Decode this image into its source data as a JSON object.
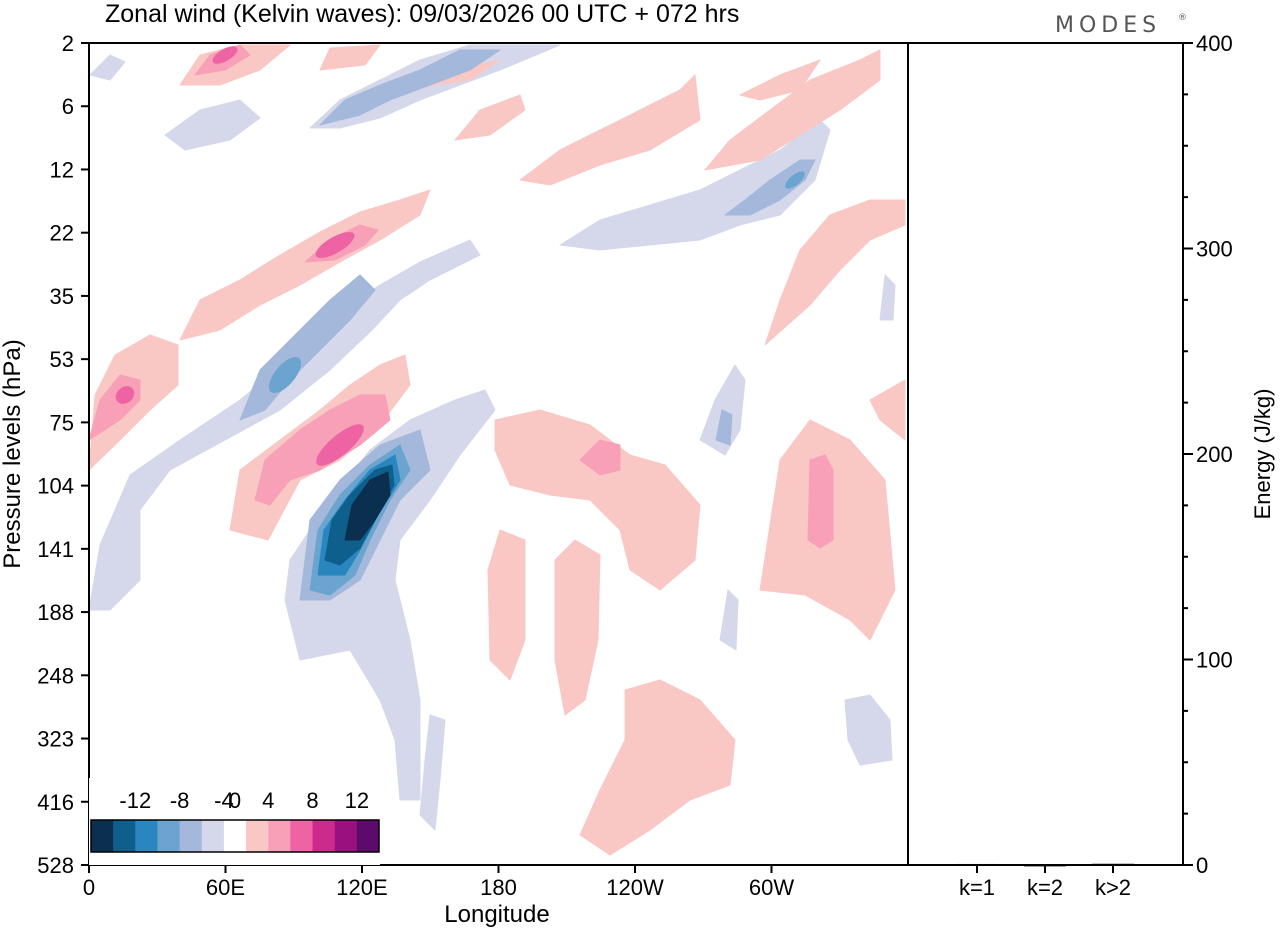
{
  "title": "Zonal wind (Kelvin waves):  09/03/2026  00 UTC  + 072 hrs",
  "logo": "MODES",
  "logo_mark": "®",
  "chart_data": [
    {
      "type": "heatmap",
      "xlabel": "Longitude",
      "ylabel": "Pressure levels (hPa)",
      "x_ticks": [
        "0",
        "60E",
        "120E",
        "180",
        "120W",
        "60W"
      ],
      "x_tick_degrees": [
        0,
        60,
        120,
        180,
        240,
        300
      ],
      "xlim": [
        0,
        360
      ],
      "y_ticks": [
        "2",
        "6",
        "12",
        "22",
        "35",
        "53",
        "75",
        "104",
        "141",
        "188",
        "248",
        "323",
        "416",
        "528"
      ],
      "colorbar": {
        "labels": [
          "-12",
          "-8",
          "-4",
          "0",
          "4",
          "8",
          "12"
        ],
        "levels": [
          -14,
          -12,
          -10,
          -8,
          -6,
          -4,
          -2,
          2,
          4,
          6,
          8,
          10,
          12,
          14
        ],
        "colors": [
          "#0a2f4f",
          "#0f5f8c",
          "#2a86bf",
          "#6aa4cf",
          "#a3b8da",
          "#d5d8ea",
          "#ffffff",
          "#f9c8c5",
          "#f8a0b7",
          "#ee63a3",
          "#cc2b8d",
          "#99107e",
          "#5e0a6c"
        ]
      },
      "features": [
        {
          "lon": 120,
          "level": "116",
          "value": -14
        },
        {
          "lon": 114,
          "level": "125",
          "value": -12
        },
        {
          "lon": 87,
          "level": "60",
          "value": -10
        },
        {
          "lon": 110,
          "level": "84",
          "value": 10
        },
        {
          "lon": 104,
          "level": "26",
          "value": 10
        },
        {
          "lon": 14,
          "level": "70",
          "value": 8
        },
        {
          "lon": 320,
          "level": "120",
          "value": 6
        },
        {
          "lon": 225,
          "level": "95",
          "value": 6
        },
        {
          "lon": 60,
          "level": "3",
          "value": 8
        },
        {
          "lon": 308,
          "level": "15",
          "value": -8
        }
      ]
    },
    {
      "type": "bar",
      "categories": [
        "k=1",
        "k=2",
        "k>2"
      ],
      "values": [
        0.5,
        0.3,
        0.6
      ],
      "ylabel": "Energy (J/kg)",
      "ylim": [
        0,
        400
      ],
      "y_ticks": [
        "0",
        "100",
        "200",
        "300",
        "400"
      ]
    }
  ]
}
